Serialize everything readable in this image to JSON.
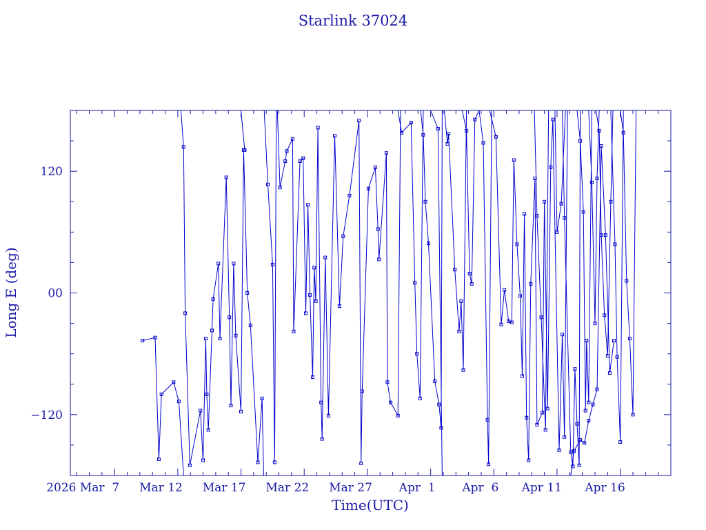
{
  "chart_data": {
    "type": "line",
    "title": "Starlink 37024",
    "xlabel": "Time(UTC)",
    "ylabel": "Long E (deg)",
    "xlim": [
      "2026-03-03 12:00",
      "2026-04-20 00:00"
    ],
    "ylim": [
      -180,
      180
    ],
    "yticks": [
      -120,
      0,
      120
    ],
    "ytick_labels": [
      "−120",
      "00",
      "120"
    ],
    "xticks": [
      "2026-03-07",
      "2026-03-12",
      "2026-03-17",
      "2026-03-22",
      "2026-03-27",
      "2026-04-01",
      "2026-04-06",
      "2026-04-11",
      "2026-04-16"
    ],
    "xtick_labels": [
      "2026 Mar  7",
      "Mar 12",
      "Mar 17",
      "Mar 22",
      "Mar 27",
      "Apr  1",
      "Apr  6",
      "Apr 11",
      "Apr 16"
    ],
    "grid": false,
    "series_color": "#0000cc",
    "series": [
      {
        "points": [
          [
            "2026-03-09 05:00",
            -47
          ],
          [
            "2026-03-10 05:00",
            -44
          ],
          [
            "2026-03-10 12:00",
            -164
          ],
          [
            "2026-03-10 17:00",
            -100
          ],
          [
            "2026-03-11 16:00",
            -88
          ],
          [
            "2026-03-12 02:00",
            -107
          ],
          [
            "2026-03-12 11:00",
            -180
          ]
        ]
      },
      {
        "points": [
          [
            "2026-03-12 06:00",
            180
          ],
          [
            "2026-03-12 11:00",
            144
          ],
          [
            "2026-03-12 14:00",
            -20
          ],
          [
            "2026-03-12 23:00",
            -170
          ],
          [
            "2026-03-13 19:00",
            -116
          ],
          [
            "2026-03-14 00:00",
            -165
          ],
          [
            "2026-03-14 05:00",
            -45
          ],
          [
            "2026-03-14 07:00",
            -100
          ],
          [
            "2026-03-14 10:00",
            -135
          ],
          [
            "2026-03-14 17:00",
            -37
          ],
          [
            "2026-03-14 19:00",
            -6
          ],
          [
            "2026-03-15 05:00",
            29
          ],
          [
            "2026-03-15 08:00",
            -45
          ],
          [
            "2026-03-15 20:00",
            114
          ],
          [
            "2026-03-16 02:00",
            -24
          ],
          [
            "2026-03-16 05:00",
            -111
          ],
          [
            "2026-03-16 10:00",
            29
          ],
          [
            "2026-03-16 14:00",
            -42
          ],
          [
            "2026-03-17 00:00",
            -117
          ],
          [
            "2026-03-17 05:00",
            141
          ],
          [
            "2026-03-17 12:00",
            0
          ],
          [
            "2026-03-17 18:00",
            -32
          ],
          [
            "2026-03-18 08:00",
            -167
          ],
          [
            "2026-03-18 16:00",
            -104
          ],
          [
            "2026-03-18 19:00",
            -180
          ]
        ]
      },
      {
        "points": [
          [
            "2026-03-17 00:00",
            180
          ],
          [
            "2026-03-17 07:00",
            141
          ]
        ]
      },
      {
        "points": [
          [
            "2026-03-18 20:00",
            180
          ],
          [
            "2026-03-19 03:00",
            107
          ],
          [
            "2026-03-19 12:00",
            28
          ],
          [
            "2026-03-19 16:00",
            -167
          ],
          [
            "2026-03-19 19:00",
            180
          ]
        ]
      },
      {
        "points": [
          [
            "2026-03-19 21:00",
            180
          ],
          [
            "2026-03-20 02:00",
            104
          ],
          [
            "2026-03-20 12:00",
            130
          ],
          [
            "2026-03-20 15:00",
            140
          ],
          [
            "2026-03-21 02:00",
            152
          ],
          [
            "2026-03-21 04:00",
            -38
          ],
          [
            "2026-03-21 16:00",
            130
          ],
          [
            "2026-03-21 22:00",
            133
          ],
          [
            "2026-03-22 03:00",
            -20
          ],
          [
            "2026-03-22 07:00",
            87
          ],
          [
            "2026-03-22 11:00",
            -2
          ],
          [
            "2026-03-22 16:00",
            -83
          ],
          [
            "2026-03-22 19:00",
            25
          ],
          [
            "2026-03-22 22:00",
            -8
          ],
          [
            "2026-03-23 02:00",
            163
          ],
          [
            "2026-03-23 08:00",
            -108
          ],
          [
            "2026-03-23 10:00",
            -144
          ],
          [
            "2026-03-23 16:00",
            35
          ],
          [
            "2026-03-23 22:00",
            -121
          ],
          [
            "2026-03-24 10:00",
            155
          ],
          [
            "2026-03-24 19:00",
            -13
          ],
          [
            "2026-03-25 02:00",
            56
          ],
          [
            "2026-03-25 14:00",
            96
          ],
          [
            "2026-03-26 08:00",
            170
          ],
          [
            "2026-03-26 12:00",
            -168
          ],
          [
            "2026-03-26 14:00",
            -97
          ],
          [
            "2026-03-27 02:00",
            103
          ],
          [
            "2026-03-27 15:00",
            124
          ],
          [
            "2026-03-27 20:00",
            63
          ],
          [
            "2026-03-27 22:00",
            33
          ],
          [
            "2026-03-28 12:00",
            138
          ],
          [
            "2026-03-28 14:00",
            -88
          ],
          [
            "2026-03-28 20:00",
            -108
          ],
          [
            "2026-03-29 10:00",
            -121
          ],
          [
            "2026-03-29 15:00",
            180
          ]
        ]
      },
      {
        "points": [
          [
            "2026-03-29 10:00",
            180
          ],
          [
            "2026-03-29 17:00",
            158
          ],
          [
            "2026-03-30 11:00",
            168
          ],
          [
            "2026-03-30 18:00",
            10
          ],
          [
            "2026-03-30 22:00",
            -60
          ],
          [
            "2026-03-31 04:00",
            -104
          ],
          [
            "2026-03-31 10:00",
            180
          ]
        ]
      },
      {
        "points": [
          [
            "2026-03-31 05:00",
            180
          ],
          [
            "2026-03-31 10:00",
            156
          ],
          [
            "2026-03-31 14:00",
            90
          ],
          [
            "2026-03-31 20:00",
            49
          ],
          [
            "2026-04-01 08:00",
            -87
          ],
          [
            "2026-04-01 16:00",
            -110
          ],
          [
            "2026-04-01 20:00",
            -133
          ],
          [
            "2026-04-01 22:00",
            180
          ]
        ]
      },
      {
        "points": [
          [
            "2026-04-01 00:00",
            180
          ],
          [
            "2026-04-01 14:00",
            162
          ],
          [
            "2026-04-01 22:00",
            -180
          ]
        ]
      },
      {
        "points": [
          [
            "2026-04-02 02:00",
            180
          ],
          [
            "2026-04-02 08:00",
            147
          ],
          [
            "2026-04-02 10:00",
            157
          ],
          [
            "2026-04-02 22:00",
            23
          ],
          [
            "2026-04-03 06:00",
            -38
          ],
          [
            "2026-04-03 10:00",
            -8
          ],
          [
            "2026-04-03 14:00",
            -76
          ],
          [
            "2026-04-03 20:00",
            180
          ]
        ]
      },
      {
        "points": [
          [
            "2026-04-03 12:00",
            180
          ],
          [
            "2026-04-03 20:00",
            160
          ],
          [
            "2026-04-04 02:00",
            19
          ],
          [
            "2026-04-04 06:00",
            9
          ],
          [
            "2026-04-04 12:00",
            171
          ],
          [
            "2026-04-04 20:00",
            180
          ]
        ]
      },
      {
        "points": [
          [
            "2026-04-04 20:00",
            180
          ],
          [
            "2026-04-05 04:00",
            148
          ],
          [
            "2026-04-05 12:00",
            -125
          ],
          [
            "2026-04-05 14:00",
            -169
          ],
          [
            "2026-04-05 20:00",
            180
          ]
        ]
      },
      {
        "points": [
          [
            "2026-04-05 16:00",
            180
          ],
          [
            "2026-04-06 04:00",
            154
          ],
          [
            "2026-04-06 14:00",
            -31
          ],
          [
            "2026-04-06 20:00",
            3
          ],
          [
            "2026-04-07 04:00",
            -28
          ],
          [
            "2026-04-07 10:00",
            -29
          ],
          [
            "2026-04-07 14:00",
            131
          ],
          [
            "2026-04-07 20:00",
            48
          ],
          [
            "2026-04-08 02:00",
            -3
          ],
          [
            "2026-04-08 06:00",
            -82
          ],
          [
            "2026-04-08 10:00",
            78
          ],
          [
            "2026-04-08 14:00",
            -123
          ],
          [
            "2026-04-08 18:00",
            -165
          ],
          [
            "2026-04-08 22:00",
            9
          ],
          [
            "2026-04-09 06:00",
            113
          ],
          [
            "2026-04-09 10:00",
            -130
          ],
          [
            "2026-04-09 20:00",
            -118
          ],
          [
            "2026-04-10 00:00",
            90
          ],
          [
            "2026-04-10 06:00",
            -114
          ],
          [
            "2026-04-10 12:00",
            124
          ],
          [
            "2026-04-10 16:00",
            171
          ],
          [
            "2026-04-11 04:00",
            -155
          ],
          [
            "2026-04-11 10:00",
            -41
          ],
          [
            "2026-04-11 14:00",
            -142
          ],
          [
            "2026-04-11 20:00",
            180
          ]
        ]
      },
      {
        "points": [
          [
            "2026-04-11 10:00",
            180
          ],
          [
            "2026-04-11 14:00",
            74
          ],
          [
            "2026-04-12 02:00",
            -157
          ],
          [
            "2026-04-12 06:00",
            -171
          ],
          [
            "2026-04-12 10:00",
            -75
          ],
          [
            "2026-04-12 14:00",
            -129
          ],
          [
            "2026-04-12 18:00",
            -170
          ],
          [
            "2026-04-12 20:00",
            180
          ]
        ]
      },
      {
        "points": [
          [
            "2026-04-12 14:00",
            180
          ],
          [
            "2026-04-12 20:00",
            150
          ],
          [
            "2026-04-13 02:00",
            80
          ],
          [
            "2026-04-13 06:00",
            -116
          ],
          [
            "2026-04-13 08:00",
            -47
          ],
          [
            "2026-04-13 12:00",
            -108
          ],
          [
            "2026-04-13 18:00",
            180
          ]
        ]
      },
      {
        "points": [
          [
            "2026-04-13 12:00",
            180
          ],
          [
            "2026-04-13 18:00",
            109
          ],
          [
            "2026-04-14 00:00",
            -30
          ],
          [
            "2026-04-14 04:00",
            113
          ],
          [
            "2026-04-14 08:00",
            180
          ]
        ]
      },
      {
        "points": [
          [
            "2026-04-14 02:00",
            180
          ],
          [
            "2026-04-14 08:00",
            160
          ],
          [
            "2026-04-14 12:00",
            57
          ],
          [
            "2026-04-14 18:00",
            -22
          ],
          [
            "2026-04-15 00:00",
            -62
          ],
          [
            "2026-04-15 06:00",
            90
          ],
          [
            "2026-04-15 10:00",
            180
          ]
        ]
      },
      {
        "points": [
          [
            "2026-04-15 06:00",
            180
          ],
          [
            "2026-04-15 14:00",
            48
          ],
          [
            "2026-04-15 18:00",
            -63
          ],
          [
            "2026-04-16 00:00",
            -147
          ],
          [
            "2026-04-16 06:00",
            180
          ]
        ]
      },
      {
        "points": [
          [
            "2026-04-16 00:00",
            180
          ],
          [
            "2026-04-16 06:00",
            158
          ],
          [
            "2026-04-16 12:00",
            12
          ],
          [
            "2026-04-16 18:00",
            -45
          ],
          [
            "2026-04-17 00:00",
            -120
          ],
          [
            "2026-04-17 06:00",
            180
          ]
        ]
      },
      {
        "points": [
          [
            "2026-04-09 05:00",
            180
          ],
          [
            "2026-04-09 10:00",
            76
          ],
          [
            "2026-04-09 18:00",
            -24
          ],
          [
            "2026-04-10 02:00",
            -135
          ],
          [
            "2026-04-10 08:00",
            180
          ]
        ]
      },
      {
        "points": [
          [
            "2026-04-10 20:00",
            180
          ],
          [
            "2026-04-11 00:00",
            60
          ],
          [
            "2026-04-11 08:00",
            88
          ],
          [
            "2026-04-11 16:00",
            180
          ]
        ]
      },
      {
        "points": [
          [
            "2026-04-12 02:00",
            -180
          ],
          [
            "2026-04-12 08:00",
            -156
          ],
          [
            "2026-04-12 20:00",
            -145
          ],
          [
            "2026-04-13 04:00",
            -148
          ],
          [
            "2026-04-13 12:00",
            -126
          ],
          [
            "2026-04-13 20:00",
            -110
          ],
          [
            "2026-04-14 04:00",
            -95
          ],
          [
            "2026-04-14 12:00",
            145
          ],
          [
            "2026-04-14 20:00",
            57
          ],
          [
            "2026-04-15 04:00",
            -79
          ],
          [
            "2026-04-15 12:00",
            -47
          ]
        ]
      }
    ]
  }
}
